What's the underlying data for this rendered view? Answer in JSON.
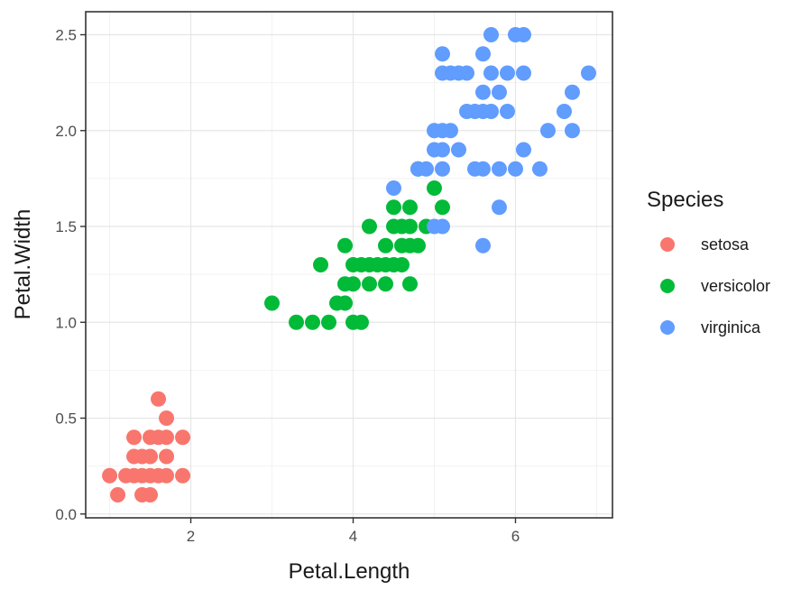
{
  "chart_data": {
    "type": "scatter",
    "title": "",
    "xlabel": "Petal.Length",
    "ylabel": "Petal.Width",
    "xlim": [
      0.705,
      7.195
    ],
    "ylim": [
      -0.02,
      2.62
    ],
    "x_ticks": [
      2,
      4,
      6
    ],
    "x_tick_labels": [
      "2",
      "4",
      "6"
    ],
    "y_ticks": [
      0,
      0.5,
      1,
      1.5,
      2,
      2.5
    ],
    "y_tick_labels": [
      "0.0",
      "0.5",
      "1.0",
      "1.5",
      "2.0",
      "2.5"
    ],
    "grid": true,
    "legend_title": "Species",
    "legend_position": "right",
    "series": [
      {
        "name": "setosa",
        "color": "#F8766D",
        "points": [
          [
            1.0,
            0.2
          ],
          [
            1.1,
            0.1
          ],
          [
            1.2,
            0.2
          ],
          [
            1.3,
            0.2
          ],
          [
            1.3,
            0.3
          ],
          [
            1.3,
            0.4
          ],
          [
            1.4,
            0.1
          ],
          [
            1.4,
            0.2
          ],
          [
            1.4,
            0.3
          ],
          [
            1.5,
            0.1
          ],
          [
            1.5,
            0.2
          ],
          [
            1.5,
            0.3
          ],
          [
            1.5,
            0.4
          ],
          [
            1.6,
            0.2
          ],
          [
            1.6,
            0.4
          ],
          [
            1.6,
            0.6
          ],
          [
            1.7,
            0.2
          ],
          [
            1.7,
            0.3
          ],
          [
            1.7,
            0.4
          ],
          [
            1.7,
            0.5
          ],
          [
            1.9,
            0.2
          ],
          [
            1.9,
            0.4
          ]
        ]
      },
      {
        "name": "versicolor",
        "color": "#00BA38",
        "points": [
          [
            3.0,
            1.1
          ],
          [
            3.3,
            1.0
          ],
          [
            3.5,
            1.0
          ],
          [
            3.6,
            1.3
          ],
          [
            3.7,
            1.0
          ],
          [
            3.8,
            1.1
          ],
          [
            3.9,
            1.1
          ],
          [
            3.9,
            1.2
          ],
          [
            3.9,
            1.4
          ],
          [
            4.0,
            1.0
          ],
          [
            4.0,
            1.2
          ],
          [
            4.0,
            1.3
          ],
          [
            4.1,
            1.0
          ],
          [
            4.1,
            1.3
          ],
          [
            4.2,
            1.2
          ],
          [
            4.2,
            1.3
          ],
          [
            4.2,
            1.5
          ],
          [
            4.3,
            1.3
          ],
          [
            4.4,
            1.2
          ],
          [
            4.4,
            1.3
          ],
          [
            4.4,
            1.4
          ],
          [
            4.5,
            1.3
          ],
          [
            4.5,
            1.5
          ],
          [
            4.5,
            1.6
          ],
          [
            4.6,
            1.3
          ],
          [
            4.6,
            1.4
          ],
          [
            4.6,
            1.5
          ],
          [
            4.7,
            1.2
          ],
          [
            4.7,
            1.4
          ],
          [
            4.7,
            1.5
          ],
          [
            4.7,
            1.6
          ],
          [
            4.8,
            1.4
          ],
          [
            4.8,
            1.8
          ],
          [
            4.9,
            1.5
          ],
          [
            5.0,
            1.7
          ],
          [
            5.1,
            1.6
          ]
        ]
      },
      {
        "name": "virginica",
        "color": "#619CFF",
        "points": [
          [
            4.5,
            1.7
          ],
          [
            4.8,
            1.8
          ],
          [
            4.9,
            1.8
          ],
          [
            5.0,
            1.5
          ],
          [
            5.0,
            1.9
          ],
          [
            5.0,
            2.0
          ],
          [
            5.1,
            1.5
          ],
          [
            5.1,
            1.8
          ],
          [
            5.1,
            1.9
          ],
          [
            5.1,
            2.0
          ],
          [
            5.1,
            2.3
          ],
          [
            5.1,
            2.4
          ],
          [
            5.2,
            2.0
          ],
          [
            5.2,
            2.3
          ],
          [
            5.3,
            1.9
          ],
          [
            5.3,
            2.3
          ],
          [
            5.4,
            2.1
          ],
          [
            5.4,
            2.3
          ],
          [
            5.5,
            1.8
          ],
          [
            5.5,
            2.1
          ],
          [
            5.6,
            1.4
          ],
          [
            5.6,
            1.8
          ],
          [
            5.6,
            2.1
          ],
          [
            5.6,
            2.2
          ],
          [
            5.6,
            2.4
          ],
          [
            5.7,
            2.1
          ],
          [
            5.7,
            2.3
          ],
          [
            5.7,
            2.5
          ],
          [
            5.8,
            1.6
          ],
          [
            5.8,
            1.8
          ],
          [
            5.8,
            2.2
          ],
          [
            5.9,
            2.1
          ],
          [
            5.9,
            2.3
          ],
          [
            6.0,
            1.8
          ],
          [
            6.0,
            2.5
          ],
          [
            6.1,
            1.9
          ],
          [
            6.1,
            2.3
          ],
          [
            6.1,
            2.5
          ],
          [
            6.3,
            1.8
          ],
          [
            6.4,
            2.0
          ],
          [
            6.6,
            2.1
          ],
          [
            6.7,
            2.0
          ],
          [
            6.7,
            2.2
          ],
          [
            6.9,
            2.3
          ]
        ]
      }
    ]
  }
}
